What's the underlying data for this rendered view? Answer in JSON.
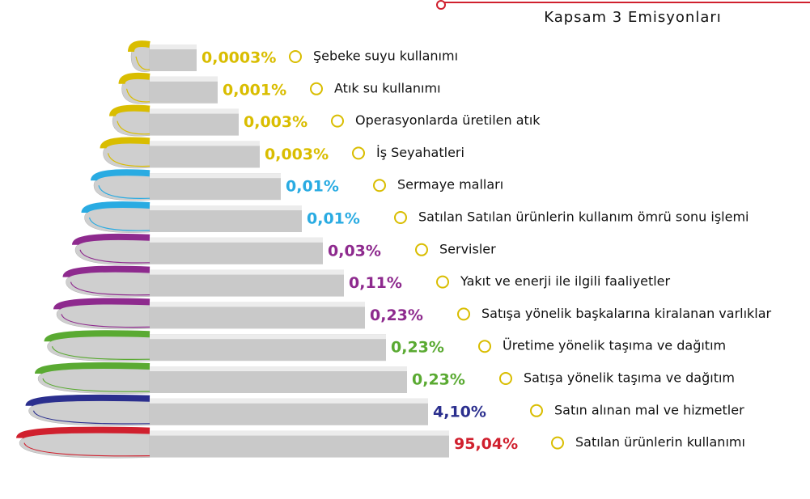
{
  "title": "Kapsam 3 Emisyonları",
  "items": [
    {
      "value": "0,0003%",
      "label": "Şebeke suyu kullanımı",
      "color": "#d9bd00"
    },
    {
      "value": "0,001%",
      "label": "Atık su kullanımı",
      "color": "#d9bd00"
    },
    {
      "value": "0,003%",
      "label": "Operasyonlarda üretilen atık",
      "color": "#d9bd00"
    },
    {
      "value": "0,003%",
      "label": "İş Seyahatleri",
      "color": "#d9bd00"
    },
    {
      "value": "0,01%",
      "label": "Sermaye malları",
      "color": "#29abe2"
    },
    {
      "value": "0,01%",
      "label": "Satılan Satılan ürünlerin kullanım ömrü sonu işlemi",
      "color": "#29abe2"
    },
    {
      "value": "0,03%",
      "label": "Servisler",
      "color": "#8e2a8e"
    },
    {
      "value": "0,11%",
      "label": "Yakıt ve enerji ile ilgili faaliyetler",
      "color": "#8e2a8e"
    },
    {
      "value": "0,23%",
      "label": "Satışa yönelik başkalarına kiralanan varlıklar",
      "color": "#8e2a8e"
    },
    {
      "value": "0,23%",
      "label": "Üretime yönelik taşıma ve dağıtım",
      "color": "#5aaa32"
    },
    {
      "value": "0,23%",
      "label": "Satışa yönelik taşıma ve dağıtım",
      "color": "#5aaa32"
    },
    {
      "value": "4,10%",
      "label": "Satın alınan mal ve hizmetler",
      "color": "#2b2f8e"
    },
    {
      "value": "95,04%",
      "label": "Satılan ürünlerin kullanımı",
      "color": "#d0202e"
    }
  ]
}
